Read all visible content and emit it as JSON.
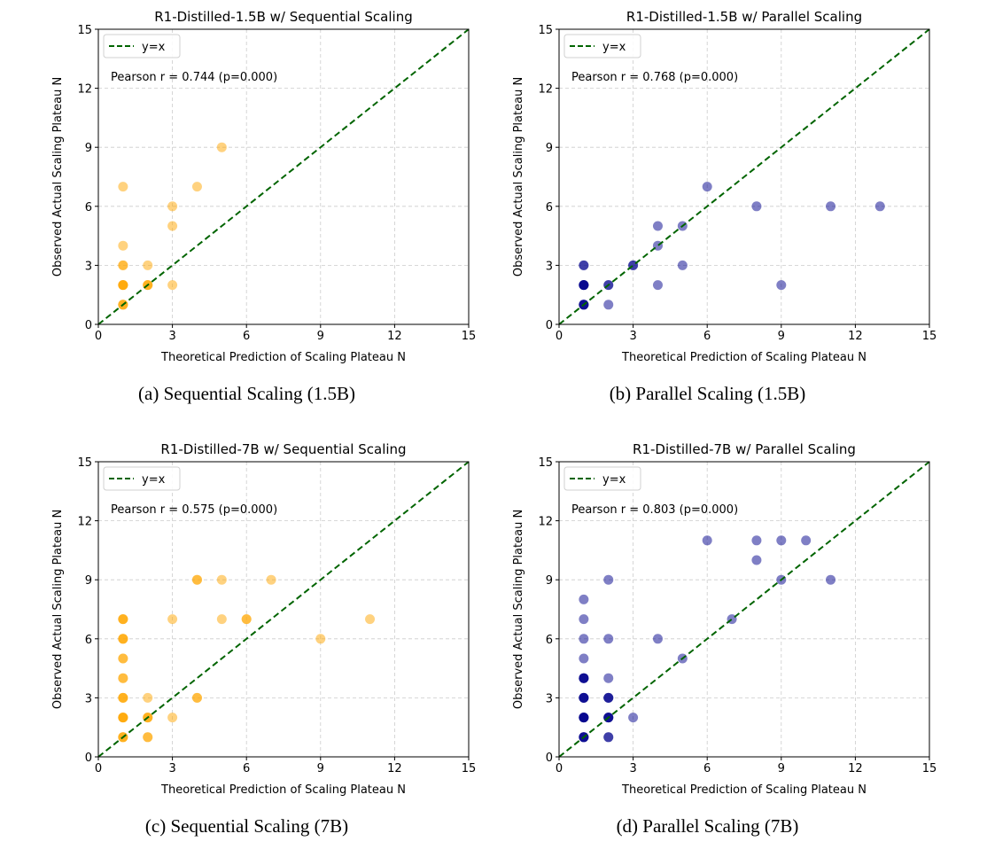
{
  "chart_data": [
    {
      "type": "scatter",
      "title": "R1-Distilled-1.5B w/ Sequential Scaling",
      "caption": "(a)  Sequential Scaling (1.5B)",
      "xlabel": "Theoretical Prediction of Scaling Plateau N",
      "ylabel": "Observed Actual Scaling Plateau N",
      "xlim": [
        0,
        15
      ],
      "ylim": [
        0,
        15
      ],
      "xticks": [
        0,
        3,
        6,
        9,
        12,
        15
      ],
      "yticks": [
        0,
        3,
        6,
        9,
        12,
        15
      ],
      "grid": true,
      "legend": {
        "position": "top-left",
        "entries": [
          "y=x"
        ]
      },
      "annotation": "Pearson r = 0.744 (p=0.000)",
      "color": "#ffa500",
      "reference_color": "#006400",
      "points": [
        [
          1,
          1,
          3
        ],
        [
          1,
          2,
          4
        ],
        [
          1,
          3,
          2
        ],
        [
          1,
          4,
          1
        ],
        [
          1,
          7,
          1
        ],
        [
          2,
          2,
          3
        ],
        [
          2,
          3,
          1
        ],
        [
          3,
          2,
          1
        ],
        [
          3,
          5,
          1
        ],
        [
          3,
          6,
          1
        ],
        [
          4,
          7,
          1
        ],
        [
          5,
          9,
          1
        ]
      ]
    },
    {
      "type": "scatter",
      "title": "R1-Distilled-1.5B w/ Parallel Scaling",
      "caption": "(b)  Parallel Scaling (1.5B)",
      "xlabel": "Theoretical Prediction of Scaling Plateau N",
      "ylabel": "Observed Actual Scaling Plateau N",
      "xlim": [
        0,
        15
      ],
      "ylim": [
        0,
        15
      ],
      "xticks": [
        0,
        3,
        6,
        9,
        12,
        15
      ],
      "yticks": [
        0,
        3,
        6,
        9,
        12,
        15
      ],
      "grid": true,
      "legend": {
        "position": "top-left",
        "entries": [
          "y=x"
        ]
      },
      "annotation": "Pearson r = 0.768 (p=0.000)",
      "color": "#00008b",
      "reference_color": "#006400",
      "points": [
        [
          1,
          1,
          4
        ],
        [
          1,
          2,
          5
        ],
        [
          1,
          3,
          2
        ],
        [
          2,
          1,
          1
        ],
        [
          2,
          2,
          2
        ],
        [
          3,
          3,
          2
        ],
        [
          4,
          2,
          1
        ],
        [
          4,
          4,
          1
        ],
        [
          4,
          5,
          1
        ],
        [
          5,
          3,
          1
        ],
        [
          5,
          5,
          1
        ],
        [
          6,
          7,
          1
        ],
        [
          8,
          6,
          1
        ],
        [
          9,
          2,
          1
        ],
        [
          11,
          6,
          1
        ],
        [
          13,
          6,
          1
        ]
      ]
    },
    {
      "type": "scatter",
      "title": "R1-Distilled-7B w/ Sequential Scaling",
      "caption": "(c)  Sequential Scaling (7B)",
      "xlabel": "Theoretical Prediction of Scaling Plateau N",
      "ylabel": "Observed Actual Scaling Plateau N",
      "xlim": [
        0,
        15
      ],
      "ylim": [
        0,
        15
      ],
      "xticks": [
        0,
        3,
        6,
        9,
        12,
        15
      ],
      "yticks": [
        0,
        3,
        6,
        9,
        12,
        15
      ],
      "grid": true,
      "legend": {
        "position": "top-left",
        "entries": [
          "y=x"
        ]
      },
      "annotation": "Pearson r = 0.575 (p=0.000)",
      "color": "#ffa500",
      "reference_color": "#006400",
      "points": [
        [
          1,
          1,
          3
        ],
        [
          1,
          2,
          4
        ],
        [
          1,
          3,
          3
        ],
        [
          1,
          4,
          2
        ],
        [
          1,
          5,
          2
        ],
        [
          1,
          6,
          3
        ],
        [
          1,
          7,
          3
        ],
        [
          2,
          1,
          2
        ],
        [
          2,
          2,
          3
        ],
        [
          2,
          3,
          1
        ],
        [
          3,
          2,
          1
        ],
        [
          3,
          7,
          1
        ],
        [
          4,
          3,
          2
        ],
        [
          4,
          9,
          2
        ],
        [
          5,
          7,
          1
        ],
        [
          5,
          9,
          1
        ],
        [
          6,
          7,
          2
        ],
        [
          7,
          9,
          1
        ],
        [
          9,
          6,
          1
        ],
        [
          11,
          7,
          1
        ]
      ]
    },
    {
      "type": "scatter",
      "title": "R1-Distilled-7B w/ Parallel Scaling",
      "caption": "(d)  Parallel Scaling (7B)",
      "xlabel": "Theoretical Prediction of Scaling Plateau N",
      "ylabel": "Observed Actual Scaling Plateau N",
      "xlim": [
        0,
        15
      ],
      "ylim": [
        0,
        15
      ],
      "xticks": [
        0,
        3,
        6,
        9,
        12,
        15
      ],
      "yticks": [
        0,
        3,
        6,
        9,
        12,
        15
      ],
      "grid": true,
      "legend": {
        "position": "top-left",
        "entries": [
          "y=x"
        ]
      },
      "annotation": "Pearson r = 0.803 (p=0.000)",
      "color": "#00008b",
      "reference_color": "#006400",
      "points": [
        [
          1,
          1,
          4
        ],
        [
          1,
          2,
          5
        ],
        [
          1,
          3,
          4
        ],
        [
          1,
          4,
          4
        ],
        [
          1,
          5,
          1
        ],
        [
          1,
          6,
          1
        ],
        [
          1,
          7,
          1
        ],
        [
          1,
          8,
          1
        ],
        [
          2,
          1,
          2
        ],
        [
          2,
          2,
          4
        ],
        [
          2,
          3,
          3
        ],
        [
          2,
          4,
          1
        ],
        [
          2,
          6,
          1
        ],
        [
          2,
          9,
          1
        ],
        [
          3,
          2,
          1
        ],
        [
          4,
          6,
          1
        ],
        [
          5,
          5,
          1
        ],
        [
          6,
          11,
          1
        ],
        [
          7,
          7,
          1
        ],
        [
          8,
          10,
          1
        ],
        [
          8,
          11,
          1
        ],
        [
          9,
          9,
          1
        ],
        [
          9,
          11,
          1
        ],
        [
          10,
          11,
          1
        ],
        [
          11,
          9,
          1
        ]
      ]
    }
  ]
}
